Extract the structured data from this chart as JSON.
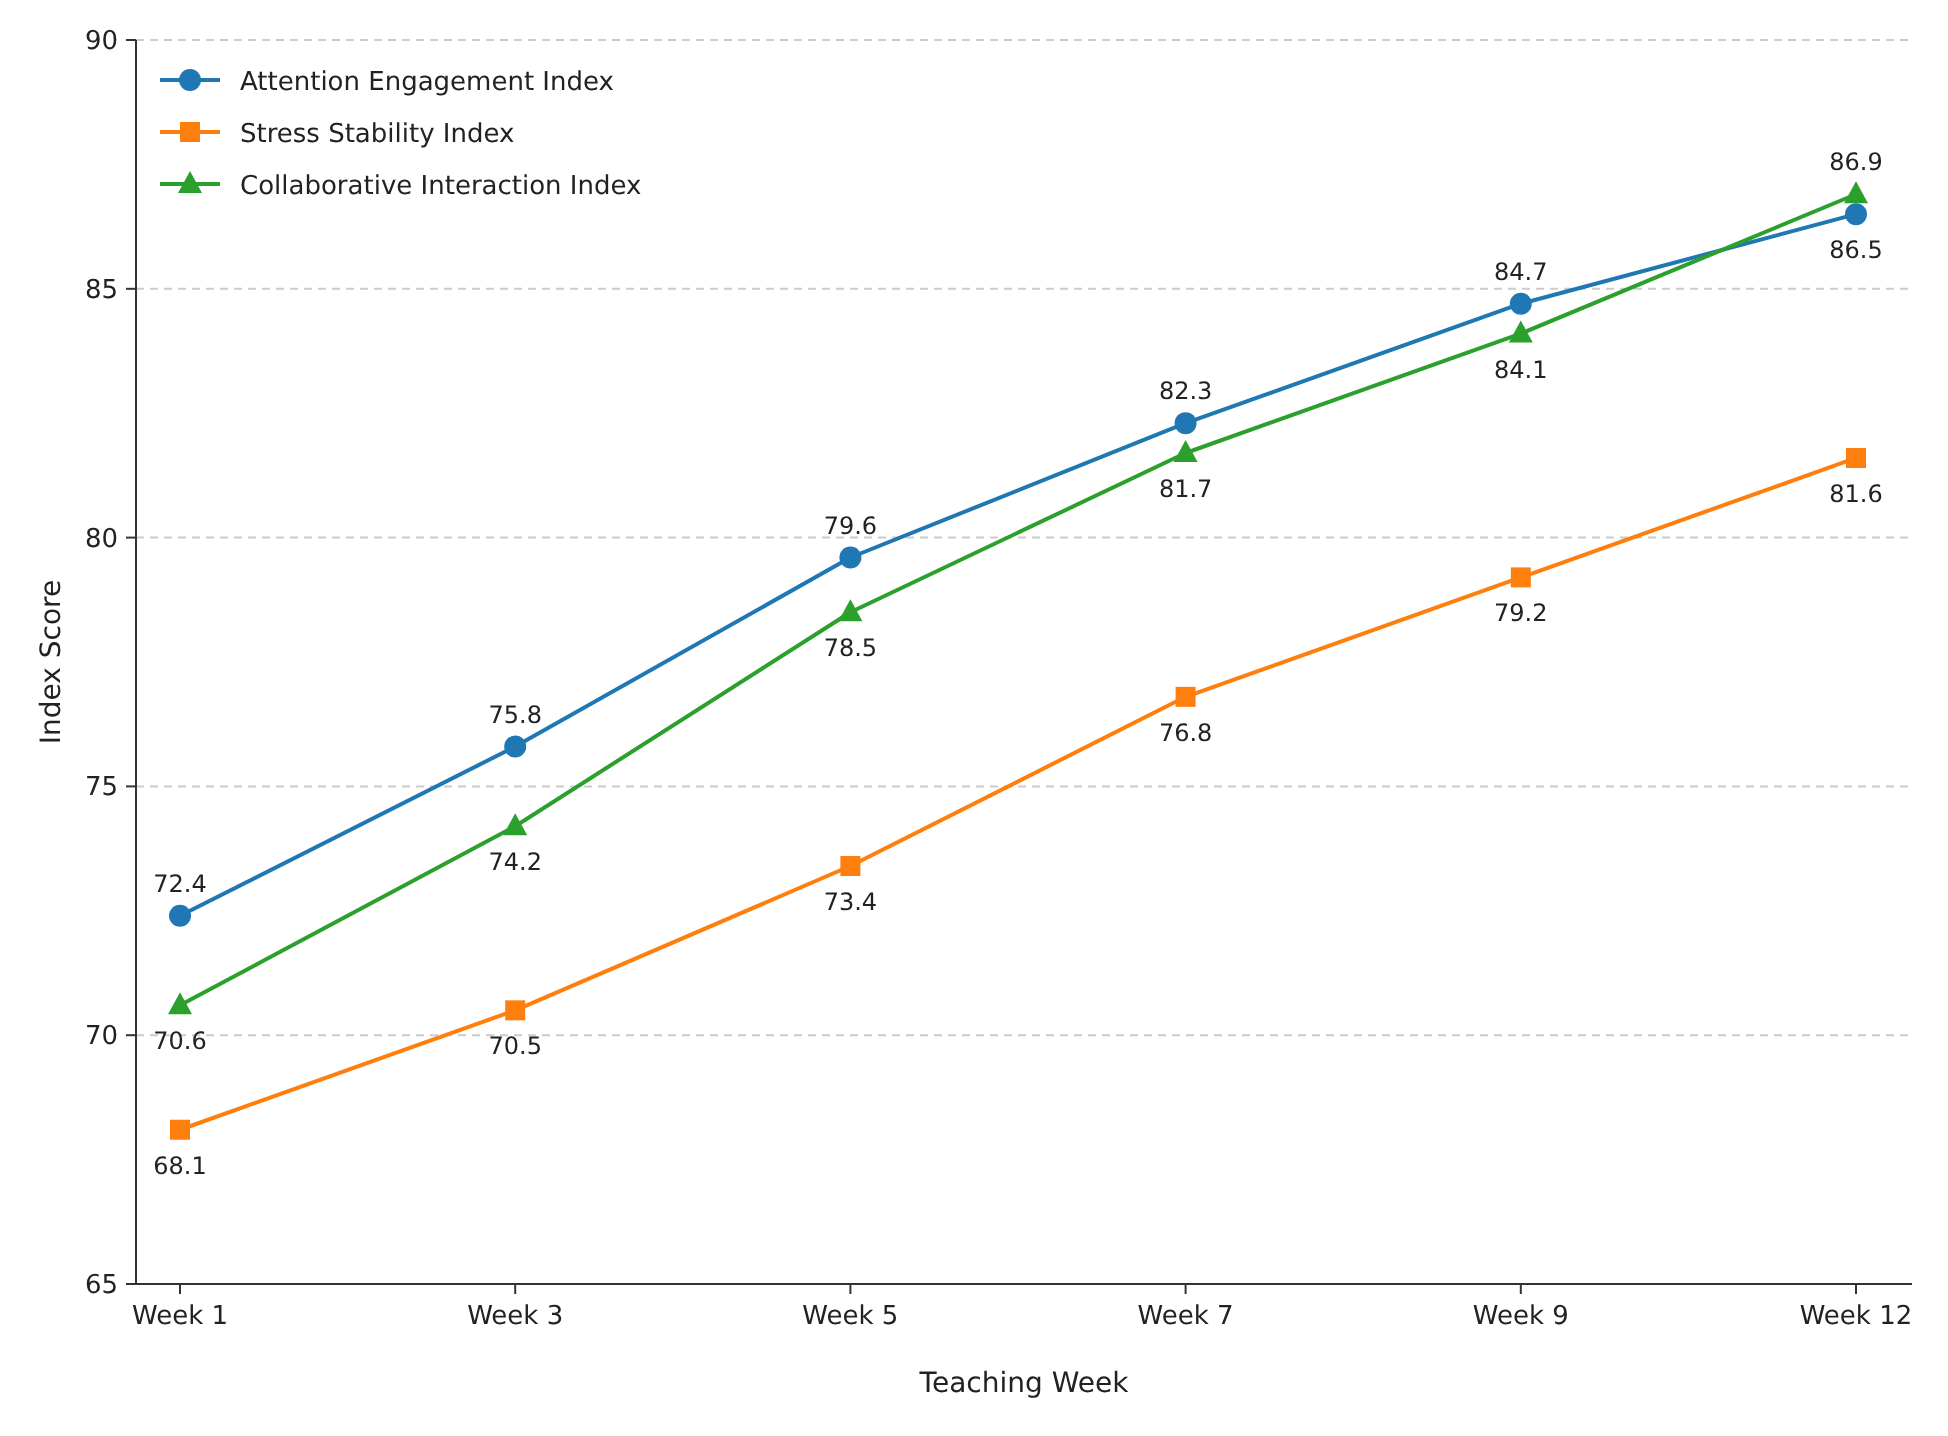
{
  "chart_data": {
    "type": "line",
    "xlabel": "Teaching Week",
    "ylabel": "Index Score",
    "categories": [
      "Week 1",
      "Week 3",
      "Week 5",
      "Week 7",
      "Week 9",
      "Week 12"
    ],
    "series": [
      {
        "name": "Attention Engagement Index",
        "color": "#1f77b4",
        "marker": "circle",
        "values": [
          72.4,
          75.8,
          79.6,
          82.3,
          84.7,
          86.5
        ]
      },
      {
        "name": "Stress Stability Index",
        "color": "#ff7f0e",
        "marker": "square",
        "values": [
          68.1,
          70.5,
          73.4,
          76.8,
          79.2,
          81.6
        ]
      },
      {
        "name": "Collaborative Interaction Index",
        "color": "#2ca02c",
        "marker": "triangle",
        "values": [
          70.6,
          74.2,
          78.5,
          81.7,
          84.1,
          86.9
        ]
      }
    ],
    "ylim": [
      65,
      90
    ],
    "yticks": [
      65,
      70,
      75,
      80,
      85,
      90
    ],
    "grid": "y",
    "legend": "top left",
    "data_labels": true,
    "line_style": "solid"
  }
}
